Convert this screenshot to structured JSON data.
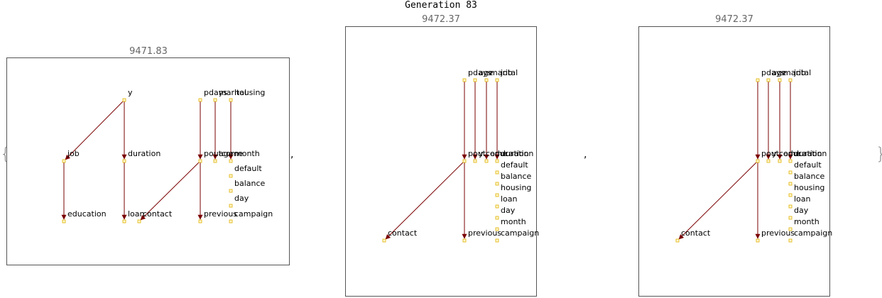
{
  "title": "Generation 83",
  "separator": ",",
  "brace_open": "{",
  "brace_close": "}",
  "colors": {
    "edge": "#7a0000",
    "node_stroke": "#e0b000",
    "node_fill": "#fff8d0",
    "frame": "#555555",
    "score": "#666666"
  },
  "graphs": [
    {
      "score": "9471.83",
      "nodes": [
        {
          "id": "y",
          "label": "y"
        },
        {
          "id": "pdays",
          "label": "pdays"
        },
        {
          "id": "marital",
          "label": "marital"
        },
        {
          "id": "housing",
          "label": "housing"
        },
        {
          "id": "job",
          "label": "job"
        },
        {
          "id": "duration",
          "label": "duration"
        },
        {
          "id": "poutcome",
          "label": "poutcome"
        },
        {
          "id": "age",
          "label": "age"
        },
        {
          "id": "month",
          "label": "month"
        },
        {
          "id": "default",
          "label": "default"
        },
        {
          "id": "balance",
          "label": "balance"
        },
        {
          "id": "day",
          "label": "day"
        },
        {
          "id": "education",
          "label": "education"
        },
        {
          "id": "loan",
          "label": "loan"
        },
        {
          "id": "contact",
          "label": "contact"
        },
        {
          "id": "previous",
          "label": "previous"
        },
        {
          "id": "campaign",
          "label": "campaign"
        }
      ],
      "edges": [
        [
          "y",
          "job"
        ],
        [
          "y",
          "duration"
        ],
        [
          "job",
          "education"
        ],
        [
          "duration",
          "loan"
        ],
        [
          "pdays",
          "poutcome"
        ],
        [
          "marital",
          "age"
        ],
        [
          "housing",
          "month"
        ],
        [
          "poutcome",
          "contact"
        ],
        [
          "poutcome",
          "previous"
        ]
      ]
    },
    {
      "score": "9472.37",
      "nodes": [
        {
          "id": "pdays",
          "label": "pdays"
        },
        {
          "id": "age",
          "label": "age"
        },
        {
          "id": "marital",
          "label": "marital"
        },
        {
          "id": "job",
          "label": "job"
        },
        {
          "id": "poutcome",
          "label": "poutcome"
        },
        {
          "id": "y",
          "label": "y"
        },
        {
          "id": "education",
          "label": "education"
        },
        {
          "id": "duration",
          "label": "duration"
        },
        {
          "id": "default",
          "label": "default"
        },
        {
          "id": "balance",
          "label": "balance"
        },
        {
          "id": "housing",
          "label": "housing"
        },
        {
          "id": "loan",
          "label": "loan"
        },
        {
          "id": "day",
          "label": "day"
        },
        {
          "id": "month",
          "label": "month"
        },
        {
          "id": "contact",
          "label": "contact"
        },
        {
          "id": "previous",
          "label": "previous"
        },
        {
          "id": "campaign",
          "label": "campaign"
        }
      ],
      "edges": [
        [
          "pdays",
          "poutcome"
        ],
        [
          "age",
          "y"
        ],
        [
          "marital",
          "education"
        ],
        [
          "job",
          "duration"
        ],
        [
          "poutcome",
          "contact"
        ],
        [
          "poutcome",
          "previous"
        ]
      ]
    },
    {
      "score": "9472.37",
      "nodes": [
        {
          "id": "pdays",
          "label": "pdays"
        },
        {
          "id": "age",
          "label": "age"
        },
        {
          "id": "marital",
          "label": "marital"
        },
        {
          "id": "job",
          "label": "job"
        },
        {
          "id": "poutcome",
          "label": "poutcome"
        },
        {
          "id": "y",
          "label": "y"
        },
        {
          "id": "education",
          "label": "education"
        },
        {
          "id": "duration",
          "label": "duration"
        },
        {
          "id": "default",
          "label": "default"
        },
        {
          "id": "balance",
          "label": "balance"
        },
        {
          "id": "housing",
          "label": "housing"
        },
        {
          "id": "loan",
          "label": "loan"
        },
        {
          "id": "day",
          "label": "day"
        },
        {
          "id": "month",
          "label": "month"
        },
        {
          "id": "contact",
          "label": "contact"
        },
        {
          "id": "previous",
          "label": "previous"
        },
        {
          "id": "campaign",
          "label": "campaign"
        }
      ],
      "edges": [
        [
          "pdays",
          "poutcome"
        ],
        [
          "age",
          "y"
        ],
        [
          "marital",
          "education"
        ],
        [
          "job",
          "duration"
        ],
        [
          "poutcome",
          "contact"
        ],
        [
          "poutcome",
          "previous"
        ]
      ]
    }
  ]
}
